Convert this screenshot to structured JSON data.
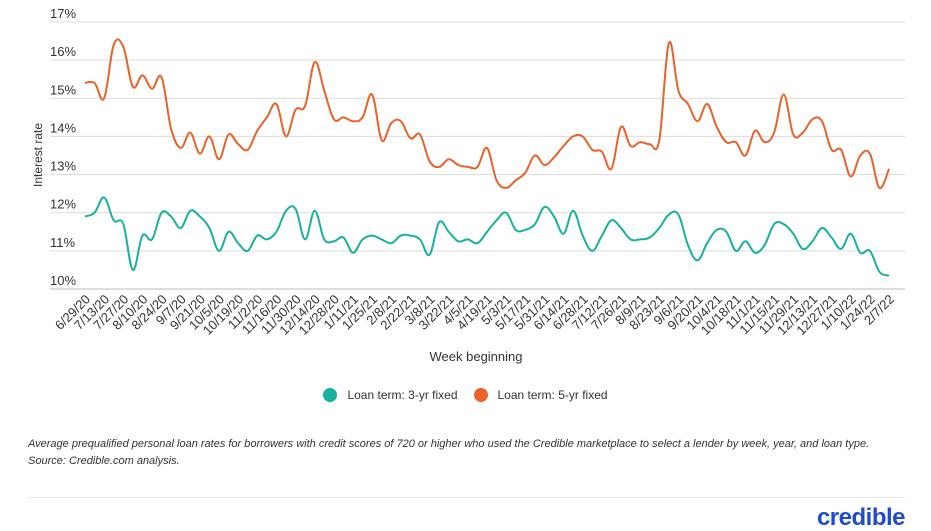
{
  "chart_data": {
    "type": "line",
    "xlabel": "Week beginning",
    "ylabel": "Interest rate",
    "ylim": [
      10,
      17
    ],
    "yticks": [
      "10%",
      "11%",
      "12%",
      "13%",
      "14%",
      "15%",
      "16%",
      "17%"
    ],
    "grid": true,
    "legend_placement": "bottom",
    "x_tick_labels": [
      "6/29/20",
      "7/13/20",
      "7/27/20",
      "8/10/20",
      "8/24/20",
      "9/7/20",
      "9/21/20",
      "10/5/20",
      "10/19/20",
      "11/2/20",
      "11/16/20",
      "11/30/20",
      "12/14/20",
      "12/28/20",
      "1/11/21",
      "1/25/21",
      "2/8/21",
      "2/22/21",
      "3/8/21",
      "3/22/21",
      "4/5/21",
      "4/19/21",
      "5/3/21",
      "5/17/21",
      "5/31/21",
      "6/14/21",
      "6/28/21",
      "7/12/21",
      "7/26/21",
      "8/9/21",
      "8/23/21",
      "9/6/21",
      "9/20/21",
      "10/4/21",
      "10/18/21",
      "11/1/21",
      "11/15/21",
      "11/29/21",
      "12/13/21",
      "12/27/21",
      "1/10/22",
      "1/24/22",
      "2/7/22"
    ],
    "series": [
      {
        "name": "Loan term: 3-yr fixed",
        "color": "#17b29b",
        "values": [
          11.9,
          12.0,
          12.4,
          11.8,
          11.7,
          10.5,
          11.4,
          11.3,
          12.0,
          11.9,
          11.6,
          12.05,
          11.9,
          11.6,
          11.0,
          11.5,
          11.2,
          11.0,
          11.4,
          11.3,
          11.5,
          12.05,
          12.1,
          11.3,
          12.05,
          11.3,
          11.25,
          11.35,
          10.95,
          11.3,
          11.4,
          11.3,
          11.2,
          11.4,
          11.4,
          11.3,
          10.9,
          11.75,
          11.5,
          11.25,
          11.3,
          11.2,
          11.5,
          11.8,
          12.0,
          11.55,
          11.55,
          11.7,
          12.15,
          11.9,
          11.45,
          12.05,
          11.4,
          11.0,
          11.4,
          11.8,
          11.6,
          11.3,
          11.3,
          11.35,
          11.6,
          11.95,
          11.95,
          11.15,
          10.75,
          11.2,
          11.55,
          11.5,
          11.0,
          11.25,
          10.95,
          11.15,
          11.7,
          11.7,
          11.45,
          11.05,
          11.25,
          11.6,
          11.35,
          11.05,
          11.45,
          10.95,
          11.0,
          10.45,
          10.35
        ]
      },
      {
        "name": "Loan term: 5-yr fixed",
        "color": "#e8622a",
        "values": [
          15.4,
          15.4,
          15.0,
          16.4,
          16.35,
          15.3,
          15.6,
          15.25,
          15.55,
          14.2,
          13.7,
          14.1,
          13.55,
          14.0,
          13.4,
          14.05,
          13.8,
          13.65,
          14.15,
          14.5,
          14.85,
          14.0,
          14.7,
          14.8,
          15.95,
          15.2,
          14.45,
          14.5,
          14.4,
          14.5,
          15.1,
          13.9,
          14.35,
          14.4,
          13.95,
          14.05,
          13.35,
          13.2,
          13.4,
          13.25,
          13.2,
          13.2,
          13.7,
          12.85,
          12.65,
          12.85,
          13.05,
          13.5,
          13.25,
          13.45,
          13.75,
          14.0,
          14.0,
          13.65,
          13.6,
          13.15,
          14.25,
          13.75,
          13.85,
          13.8,
          13.9,
          16.45,
          15.2,
          14.85,
          14.4,
          14.85,
          14.25,
          13.85,
          13.85,
          13.5,
          14.15,
          13.85,
          14.1,
          15.1,
          14.05,
          14.1,
          14.45,
          14.4,
          13.65,
          13.65,
          12.95,
          13.5,
          13.55,
          12.65,
          13.15
        ]
      }
    ]
  },
  "legend": {
    "items": [
      {
        "label": "Loan term: 3-yr fixed",
        "color": "#17b29b"
      },
      {
        "label": "Loan term: 5-yr fixed",
        "color": "#e8622a"
      }
    ]
  },
  "caption": "Average prequalified personal loan rates for borrowers with credit scores of 720 or higher who used the Credible marketplace to select a lender by week, year, and loan type. Source: Credible.com analysis.",
  "logo": "credible"
}
